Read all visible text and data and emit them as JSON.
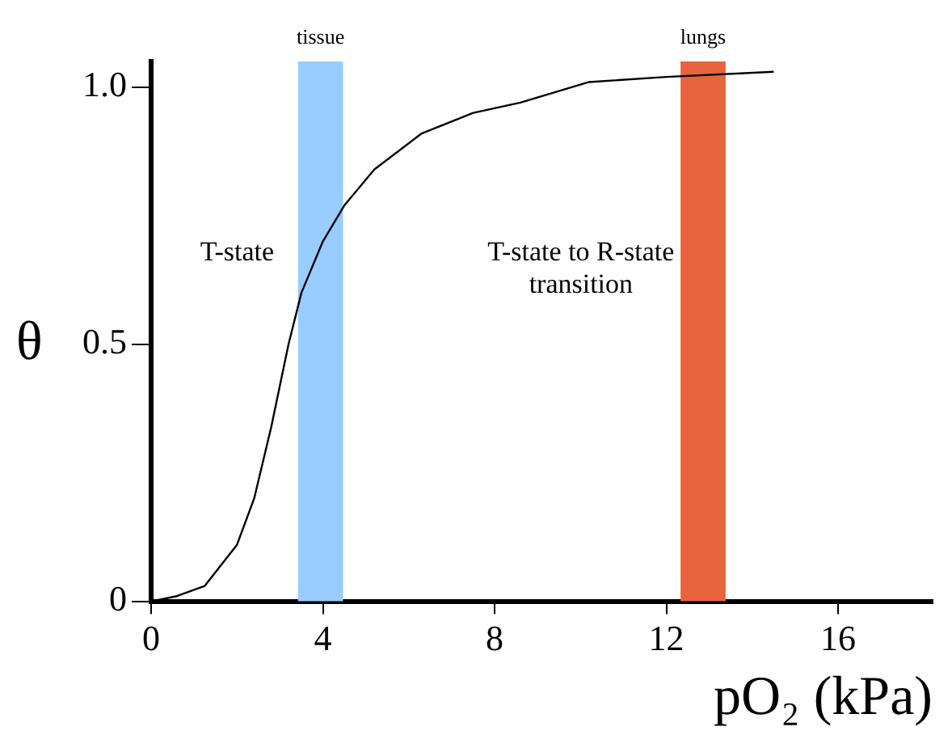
{
  "chart_data": {
    "type": "line",
    "xlabel": "pO₂ (kPa)",
    "ylabel": "θ",
    "series": [
      {
        "color": "#000000",
        "x": [
          0,
          0.6,
          1.25,
          2,
          2.4,
          2.8,
          3.2,
          3.5,
          4,
          4.5,
          5.2,
          6.3,
          7.5,
          8.6,
          10.2,
          12,
          14.5
        ],
        "values": [
          0,
          0.01,
          0.03,
          0.11,
          0.2,
          0.34,
          0.5,
          0.6,
          0.7,
          0.77,
          0.84,
          0.91,
          0.95,
          0.97,
          1.01,
          1.02,
          1.03
        ]
      }
    ],
    "xlim": [
      0,
      18.2
    ],
    "xticks": [
      0,
      4,
      8,
      12,
      16
    ],
    "ylim": [
      0,
      1.05
    ],
    "yticks": [
      0,
      0.5,
      {
        "value": 1,
        "label": "1.0"
      }
    ],
    "bands": [
      {
        "axis": "x",
        "from": 3.42,
        "to": 4.47,
        "label": "tissue",
        "color": "#99ccff"
      },
      {
        "axis": "x",
        "from": 12.33,
        "to": 13.38,
        "label": "lungs",
        "color": "#e8643c"
      }
    ],
    "annotations": [
      "T-state",
      "T-state to R-state transition"
    ],
    "grid": false,
    "legend": false,
    "marker": "none",
    "line_style": "solid"
  }
}
